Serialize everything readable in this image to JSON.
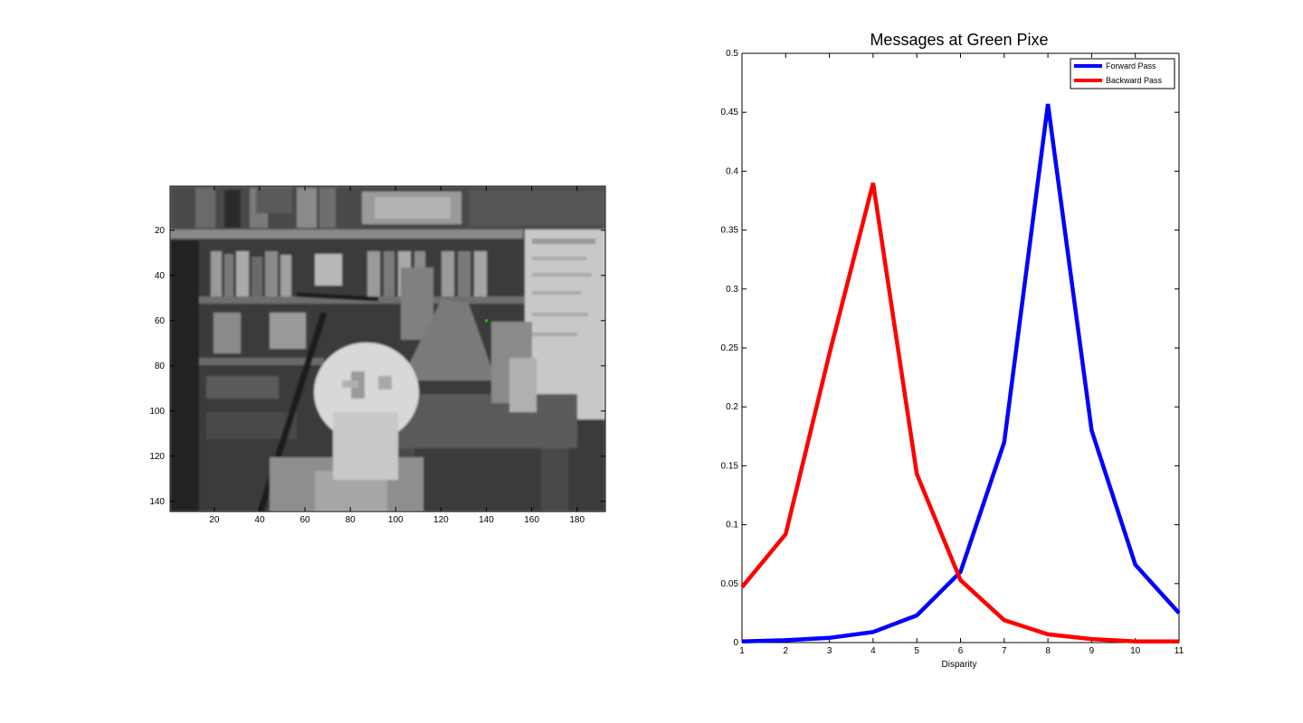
{
  "image_panel": {
    "xticks": [
      20,
      40,
      60,
      80,
      100,
      120,
      140,
      160,
      180
    ],
    "yticks": [
      20,
      40,
      60,
      80,
      100,
      120,
      140
    ],
    "xlim": [
      0.5,
      192.5
    ],
    "ylim": [
      0.5,
      144.5
    ],
    "green_pixel": {
      "x": 140,
      "y": 60,
      "color": "#00d000"
    }
  },
  "chart_data": {
    "type": "line",
    "title": "Messages at Green Pixe",
    "xlabel": "Disparity",
    "ylabel": "",
    "xlim": [
      1,
      11
    ],
    "ylim": [
      0,
      0.5
    ],
    "xticks": [
      1,
      2,
      3,
      4,
      5,
      6,
      7,
      8,
      9,
      10,
      11
    ],
    "yticks": [
      0,
      0.05,
      0.1,
      0.15,
      0.2,
      0.25,
      0.3,
      0.35,
      0.4,
      0.45,
      0.5
    ],
    "ytick_labels": [
      "0",
      "0.05",
      "0.1",
      "0.15",
      "0.2",
      "0.25",
      "0.3",
      "0.35",
      "0.4",
      "0.45",
      "0.5"
    ],
    "grid": false,
    "legend_position": "top-right",
    "x": [
      1,
      2,
      3,
      4,
      5,
      6,
      7,
      8,
      9,
      10,
      11
    ],
    "series": [
      {
        "name": "Forward Pass",
        "color": "#0000ff",
        "values": [
          0.001,
          0.002,
          0.004,
          0.009,
          0.023,
          0.06,
          0.17,
          0.457,
          0.18,
          0.066,
          0.025
        ]
      },
      {
        "name": "Backward Pass",
        "color": "#ff0000",
        "values": [
          0.047,
          0.092,
          0.245,
          0.39,
          0.143,
          0.053,
          0.019,
          0.007,
          0.003,
          0.001,
          0.001
        ]
      }
    ]
  }
}
